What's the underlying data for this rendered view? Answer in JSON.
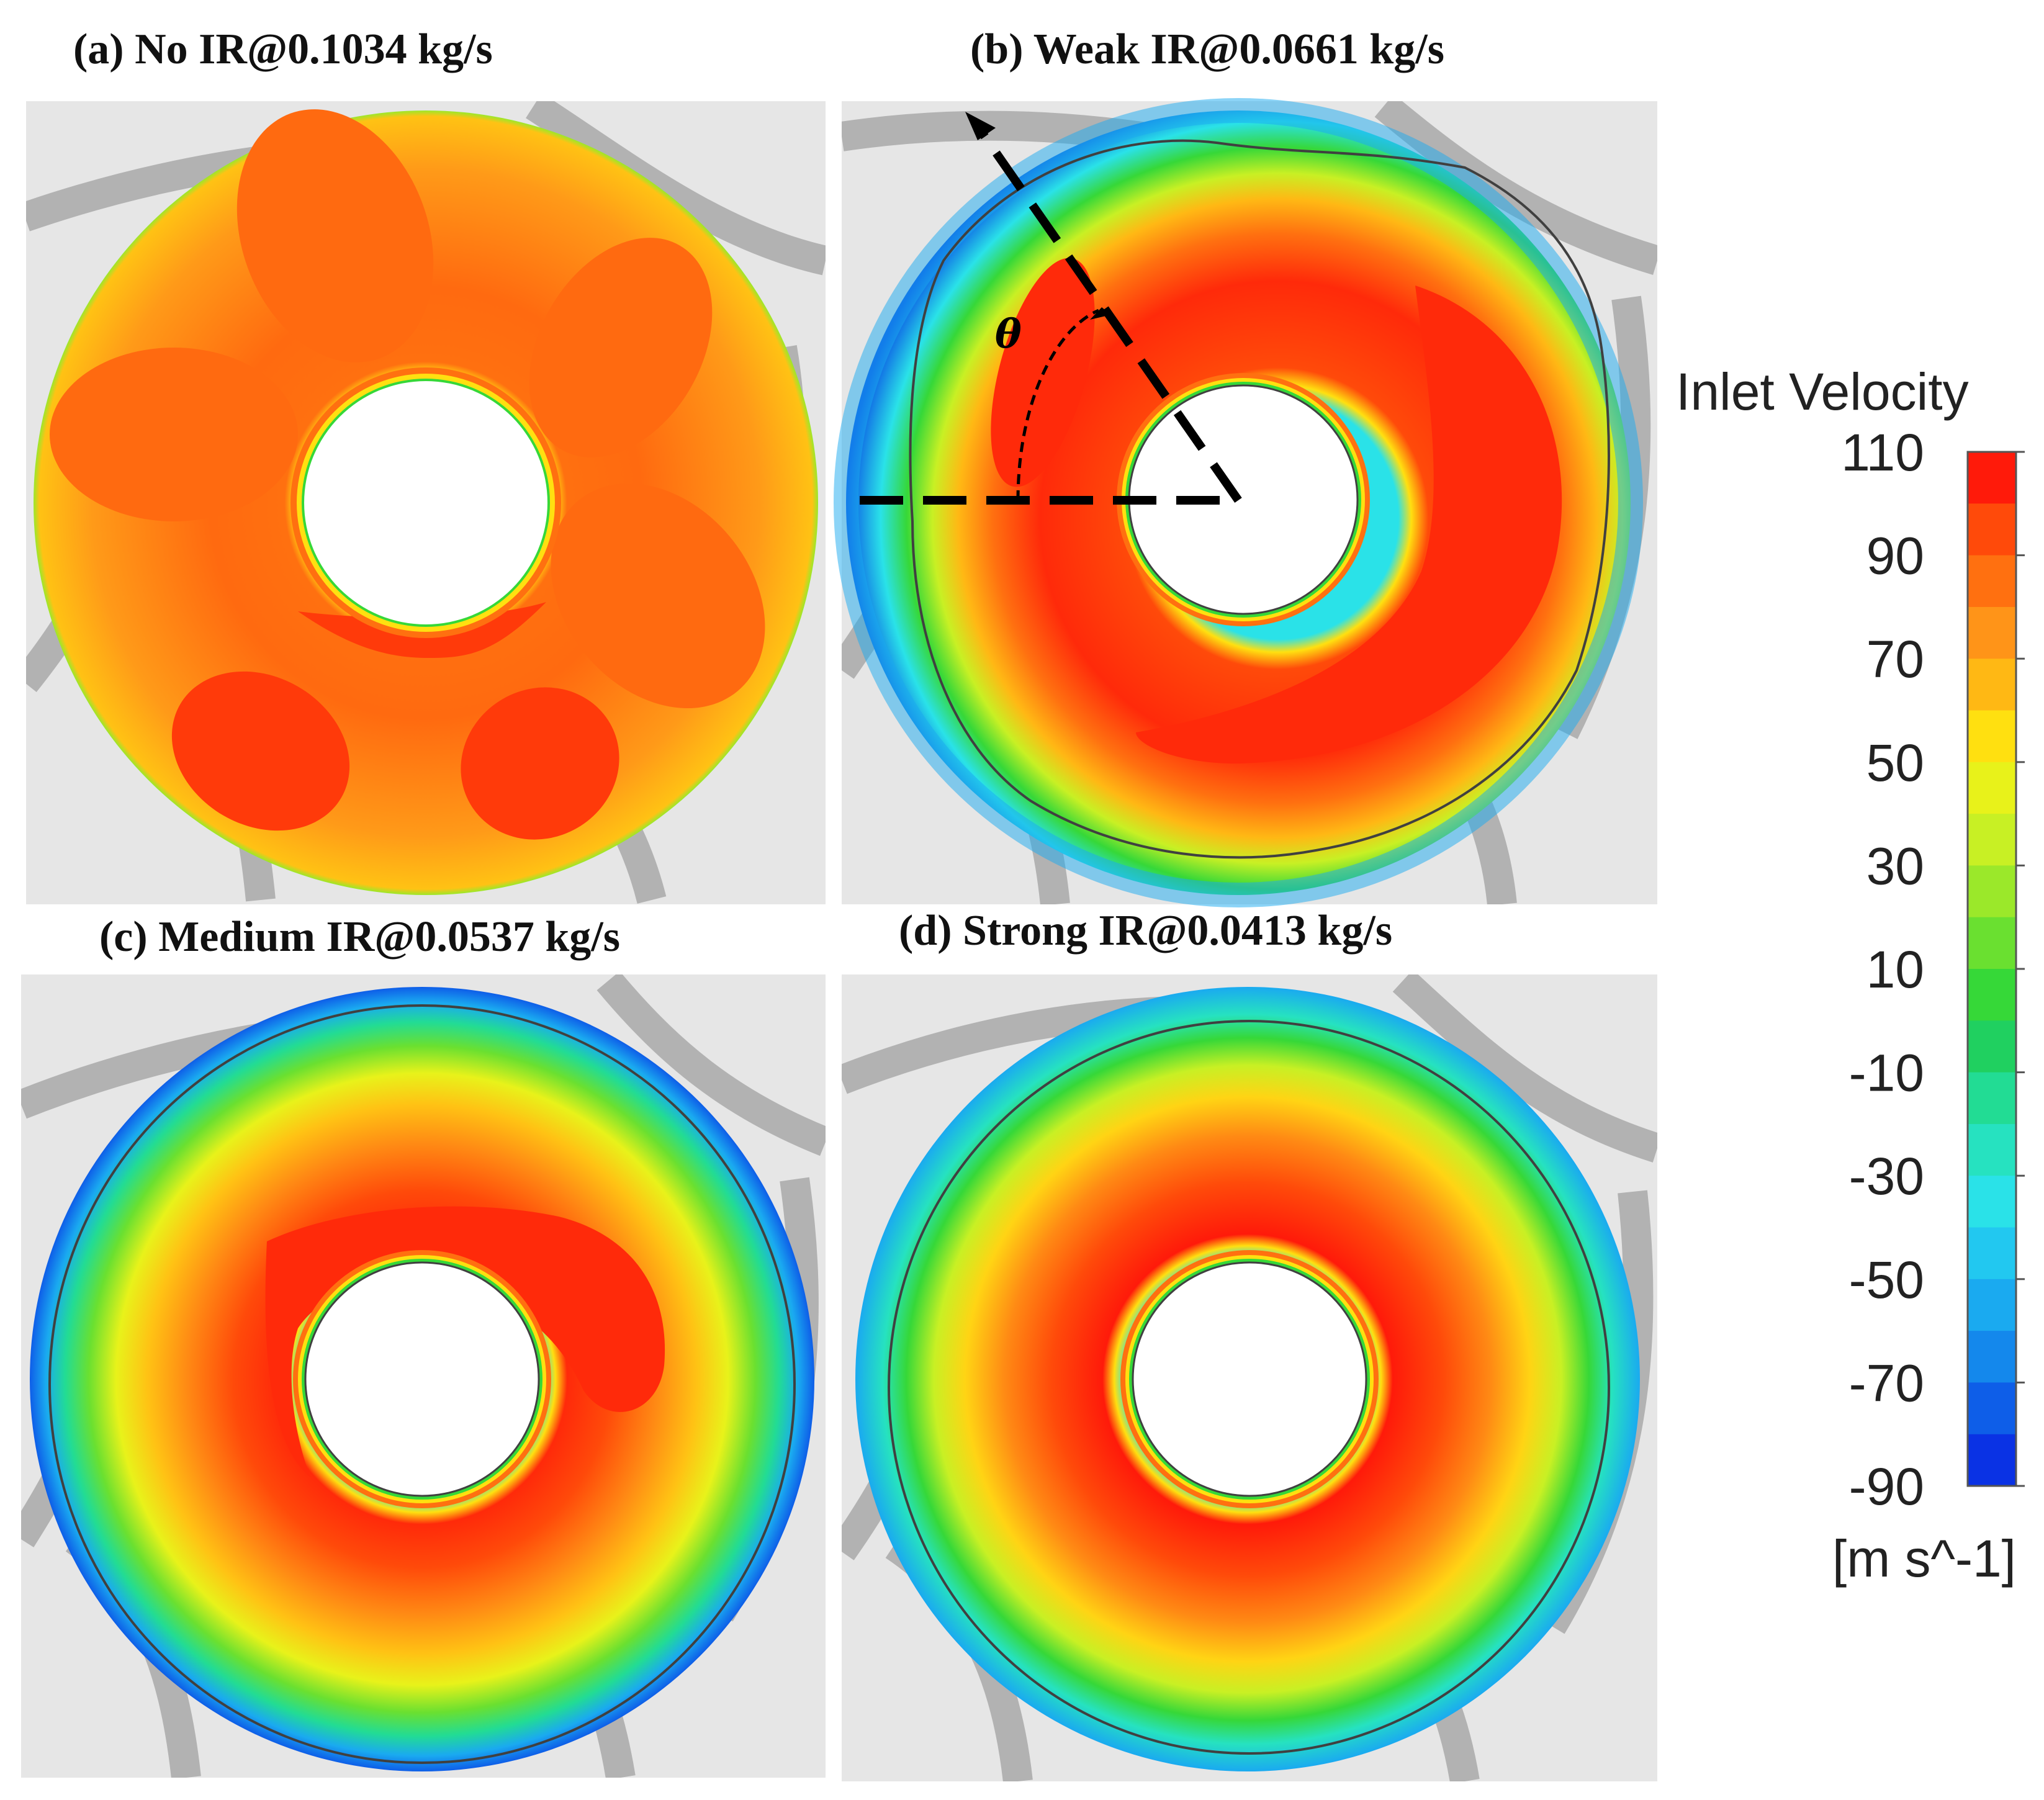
{
  "panels": [
    {
      "id": "a",
      "title": "(a) No IR@0.1034 kg/s",
      "case": "No IR",
      "mass_flow_rate": "0.1034 kg/s"
    },
    {
      "id": "b",
      "title": "(b) Weak IR@0.0661 kg/s",
      "case": "Weak IR",
      "mass_flow_rate": "0.0661 kg/s",
      "angle_symbol": "θ"
    },
    {
      "id": "c",
      "title": "(c) Medium IR@0.0537 kg/s",
      "case": "Medium IR",
      "mass_flow_rate": "0.0537 kg/s"
    },
    {
      "id": "d",
      "title": "(d) Strong IR@0.0413 kg/s",
      "case": "Strong IR",
      "mass_flow_rate": "0.0413 kg/s"
    }
  ],
  "colorbar": {
    "title": "Inlet Velocity",
    "unit": "[m s^-1]",
    "min": -90,
    "max": 110,
    "tick_labels": [
      "110",
      "90",
      "70",
      "50",
      "30",
      "10",
      "-10",
      "-30",
      "-50",
      "-70",
      "-90"
    ],
    "colors": [
      "#ff1a0a",
      "#ff4a0a",
      "#ff7010",
      "#ff9418",
      "#ffb814",
      "#ffe010",
      "#e8f21a",
      "#c8f024",
      "#9be82a",
      "#6ae030",
      "#36d838",
      "#20d060",
      "#22dc94",
      "#26e2c0",
      "#2ae2e8",
      "#22c8f0",
      "#1aaaf0",
      "#1488ec",
      "#0e5ee8",
      "#0a32e4"
    ]
  }
}
